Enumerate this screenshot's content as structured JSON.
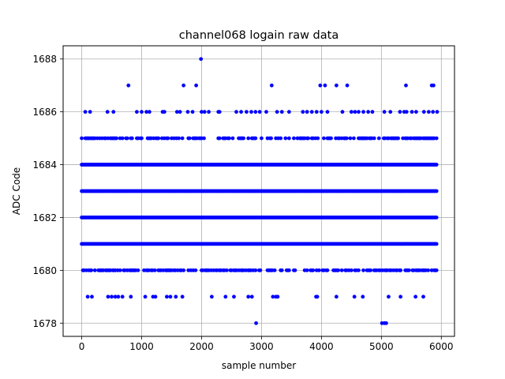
{
  "chart_data": {
    "type": "scatter",
    "title": "channel068 logain raw data",
    "xlabel": "sample number",
    "ylabel": "ADC Code",
    "xlim": [
      -310,
      6220
    ],
    "ylim": [
      1677.5,
      1688.5
    ],
    "xticks": [
      0,
      1000,
      2000,
      3000,
      4000,
      5000,
      6000
    ],
    "yticks": [
      1678,
      1680,
      1682,
      1684,
      1686,
      1688
    ],
    "grid": true,
    "marker_color": "#0000ff",
    "x_max_sample": 5930,
    "dense_levels": [
      1681,
      1682,
      1683,
      1684
    ],
    "sparse_levels": [
      {
        "y": 1680,
        "density": 0.55
      },
      {
        "y": 1685,
        "density": 0.5
      }
    ],
    "outliers": [
      {
        "y": 1688,
        "x": [
          1990
        ]
      },
      {
        "y": 1687,
        "x": [
          780,
          1700,
          1910,
          3170,
          3980,
          4060,
          4250,
          4430,
          5410,
          5840,
          5870
        ]
      },
      {
        "y": 1686,
        "x": [
          60,
          140,
          430,
          530,
          920,
          1000,
          1080,
          1130,
          1350,
          1380,
          1590,
          1640,
          1770,
          1850,
          2000,
          2050,
          2120,
          2280,
          2300,
          2580,
          2660,
          2750,
          2830,
          2900,
          2970,
          3080,
          3260,
          3340,
          3460,
          3690,
          3760,
          3840,
          3920,
          4000,
          4100,
          4350,
          4500,
          4560,
          4620,
          4700,
          4780,
          4850,
          5050,
          5150,
          5310,
          5380,
          5420,
          5510,
          5580,
          5710,
          5790,
          5860,
          5930
        ]
      },
      {
        "y": 1679,
        "x": [
          100,
          170,
          440,
          500,
          560,
          610,
          680,
          820,
          1060,
          1190,
          1230,
          1420,
          1480,
          1570,
          1680,
          2170,
          2400,
          2540,
          2780,
          2840,
          3190,
          3240,
          3270,
          3910,
          3930,
          4250,
          4550,
          4690,
          5120,
          5320,
          5570,
          5700
        ]
      },
      {
        "y": 1678,
        "x": [
          2910,
          5010,
          5050,
          5080
        ]
      }
    ]
  }
}
